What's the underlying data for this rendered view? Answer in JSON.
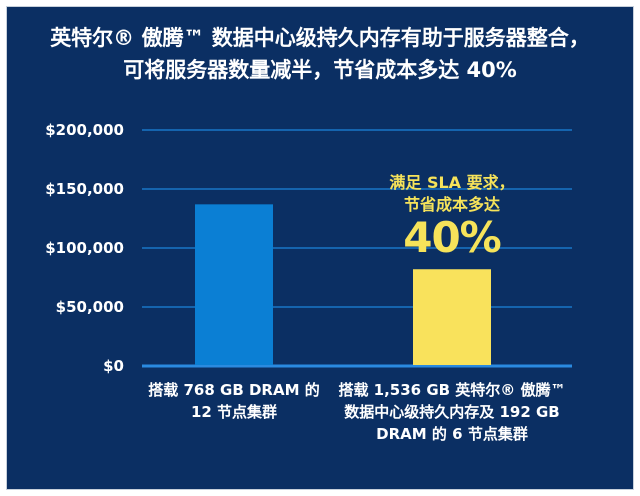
{
  "chart_data": {
    "type": "bar",
    "title_lines": [
      "英特尔® 傲腾™ 数据中心级持久内存有助于服务器整合，",
      "可将服务器数量减半，节省成本多达 40%"
    ],
    "categories": [
      [
        "搭载 768 GB DRAM 的",
        "12 节点集群"
      ],
      [
        "搭载 1,536 GB 英特尔® 傲腾™",
        "数据中心级持久内存及 192 GB",
        "DRAM 的 6 节点集群"
      ]
    ],
    "values": [
      137000,
      82000
    ],
    "bar_colors": [
      "#0b7fd4",
      "#f9e25c"
    ],
    "ylim": [
      0,
      200000
    ],
    "yticks": [
      0,
      50000,
      100000,
      150000,
      200000
    ],
    "ytick_labels": [
      "$0",
      "$50,000",
      "$100,000",
      "$150,000",
      "$200,000"
    ],
    "annotation": {
      "lines": [
        "满足 SLA 要求，",
        "节省成本多达"
      ],
      "highlight": "40%"
    },
    "gridlines": true,
    "colors": {
      "background": "#0b2f63",
      "gridline": "#1976c8",
      "annotation": "#f6e35a"
    }
  }
}
